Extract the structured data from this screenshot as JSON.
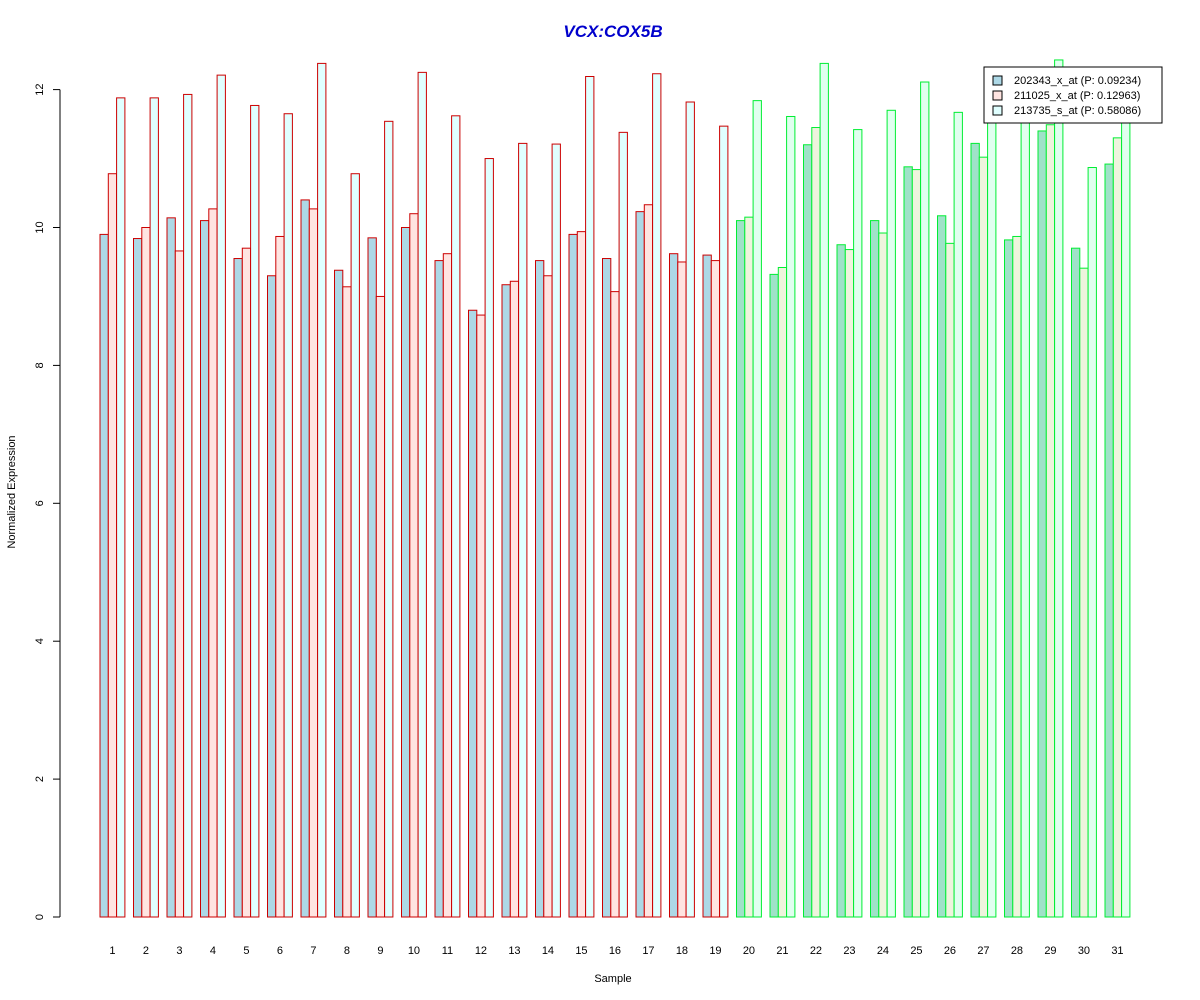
{
  "chart_data": {
    "type": "bar",
    "title": "VCX:COX5B",
    "xlabel": "Sample",
    "ylabel": "Normalized Expression",
    "ylim": [
      0,
      12.5
    ],
    "yticks": [
      "0",
      "2",
      "4",
      "6",
      "8",
      "10",
      "12"
    ],
    "categories": [
      "1",
      "2",
      "3",
      "4",
      "5",
      "6",
      "7",
      "8",
      "9",
      "10",
      "11",
      "12",
      "13",
      "14",
      "15",
      "16",
      "17",
      "18",
      "19",
      "20",
      "21",
      "22",
      "23",
      "24",
      "25",
      "26",
      "27",
      "28",
      "29",
      "30",
      "31"
    ],
    "series": [
      {
        "name": "202343_x_at (P: 0.09234)",
        "values": [
          9.9,
          9.84,
          10.14,
          10.1,
          9.55,
          9.3,
          10.4,
          9.38,
          9.85,
          10.0,
          9.52,
          8.8,
          9.17,
          9.52,
          9.9,
          9.55,
          10.23,
          9.62,
          9.6,
          10.1,
          9.32,
          11.2,
          9.75,
          10.1,
          10.88,
          10.17,
          11.22,
          9.82,
          11.4,
          9.7,
          10.92
        ]
      },
      {
        "name": "211025_x_at (P: 0.12963)",
        "values": [
          10.78,
          10.0,
          9.66,
          10.27,
          9.7,
          9.87,
          10.27,
          9.14,
          9.0,
          10.2,
          9.62,
          8.73,
          9.22,
          9.3,
          9.94,
          9.07,
          10.33,
          9.5,
          9.52,
          10.15,
          9.42,
          11.45,
          9.68,
          9.92,
          10.84,
          9.77,
          11.02,
          9.87,
          11.49,
          9.41,
          11.3
        ]
      },
      {
        "name": "213735_s_at (P: 0.58086)",
        "values": [
          11.88,
          11.88,
          11.93,
          12.21,
          11.77,
          11.65,
          12.38,
          10.78,
          11.54,
          12.25,
          11.62,
          11.0,
          11.22,
          11.21,
          12.19,
          11.38,
          12.23,
          11.82,
          11.47,
          11.84,
          11.61,
          12.38,
          11.42,
          11.7,
          12.11,
          11.67,
          11.75,
          11.66,
          12.43,
          10.87,
          11.58
        ]
      }
    ],
    "group_a_samples": 19,
    "colors": {
      "group_a_border": "#cc0000",
      "group_b_border": "#00ee33",
      "series_fill_a": [
        "#add8e6",
        "#ffe4e1",
        "#e0ffff"
      ],
      "series_fill_b": [
        "#9fe2c8",
        "#eef4dd",
        "#e0ffef"
      ],
      "legend_fill": [
        "#add8e6",
        "#ffe4e1",
        "#e0ffff"
      ],
      "title": "#0000cc"
    },
    "legend_position": "top-right",
    "grid": false
  }
}
